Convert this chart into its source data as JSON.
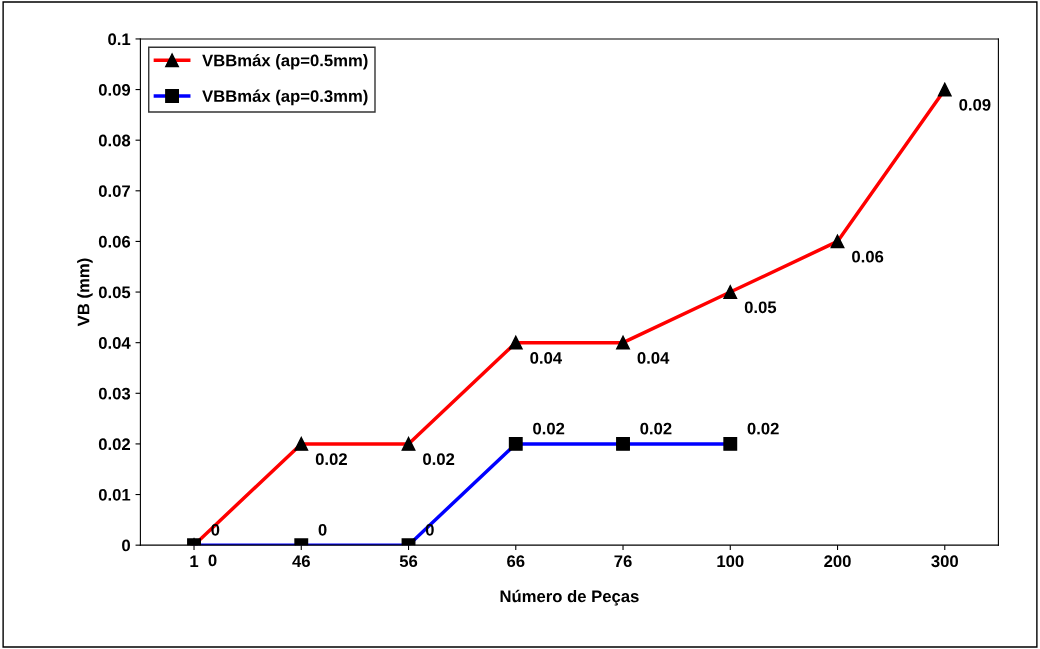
{
  "chart_data": {
    "type": "line",
    "xlabel": "Número de Peças",
    "ylabel": "VB (mm)",
    "categories": [
      "1",
      "46",
      "56",
      "66",
      "76",
      "100",
      "200",
      "300"
    ],
    "series": [
      {
        "name": "VBBmáx (ap=0.5mm)",
        "color": "#ff0000",
        "marker": "triangle",
        "values": [
          0,
          0.02,
          0.02,
          0.04,
          0.04,
          0.05,
          0.06,
          0.09
        ]
      },
      {
        "name": "VBBmáx (ap=0.3mm)",
        "color": "#0000ff",
        "marker": "square",
        "values": [
          0,
          0,
          0,
          0.02,
          0.02,
          0.02,
          null,
          null
        ]
      }
    ],
    "ylim": [
      0,
      0.1
    ],
    "yticks": [
      0,
      {
        "value": 0.01,
        "label": "0.01"
      },
      {
        "value": 0.02,
        "label": "0.02"
      },
      {
        "value": 0.03,
        "label": "0.03"
      },
      {
        "value": 0.04,
        "label": "0.04"
      },
      {
        "value": 0.05,
        "label": "0.05"
      },
      {
        "value": 0.06,
        "label": "0.06"
      },
      {
        "value": 0.07,
        "label": "0.07"
      },
      {
        "value": 0.08,
        "label": "0.08"
      },
      {
        "value": 0.09,
        "label": "0.09"
      },
      {
        "value": 0.1,
        "label": "0.1"
      }
    ],
    "data_labels": true,
    "legend": "top left",
    "grid": false
  }
}
